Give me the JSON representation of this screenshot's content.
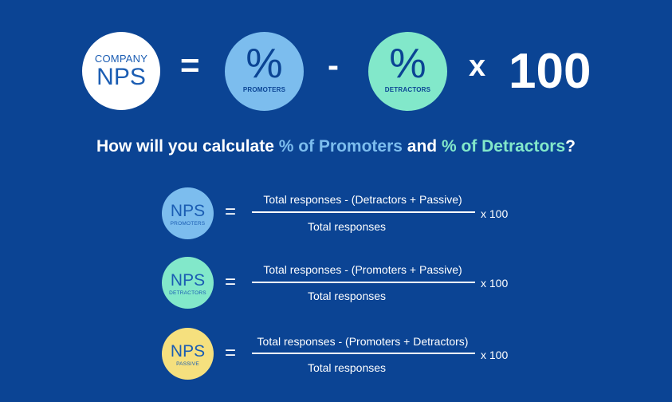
{
  "top_formula": {
    "company_small": "COMPANY",
    "company_big": "NPS",
    "equals": "=",
    "percent_symbol": "%",
    "promoters_label": "PROMOTERS",
    "minus": "-",
    "detractors_label": "DETRACTORS",
    "times": "x",
    "hundred": "100"
  },
  "question": {
    "part1": "How will you calculate ",
    "highlight1": "% of Promoters",
    "part2": " and ",
    "highlight2": "% of Detractors",
    "part3": "?"
  },
  "formulas": [
    {
      "badge_title": "NPS",
      "badge_label": "PROMOTERS",
      "equals": "=",
      "numerator": "Total responses - (Detractors + Passive)",
      "denominator": "Total responses",
      "multiplier": "x 100"
    },
    {
      "badge_title": "NPS",
      "badge_label": "DETRACTORS",
      "equals": "=",
      "numerator": "Total responses - (Promoters + Passive)",
      "denominator": "Total responses",
      "multiplier": "x 100"
    },
    {
      "badge_title": "NPS",
      "badge_label": "PASSIVE",
      "equals": "=",
      "numerator": "Total responses - (Promoters + Detractors)",
      "denominator": "Total responses",
      "multiplier": "x 100"
    }
  ],
  "colors": {
    "background": "#0b4494",
    "promoters": "#7cbdee",
    "detractors": "#82e8ca",
    "passive": "#f5e07e",
    "company": "#ffffff"
  }
}
